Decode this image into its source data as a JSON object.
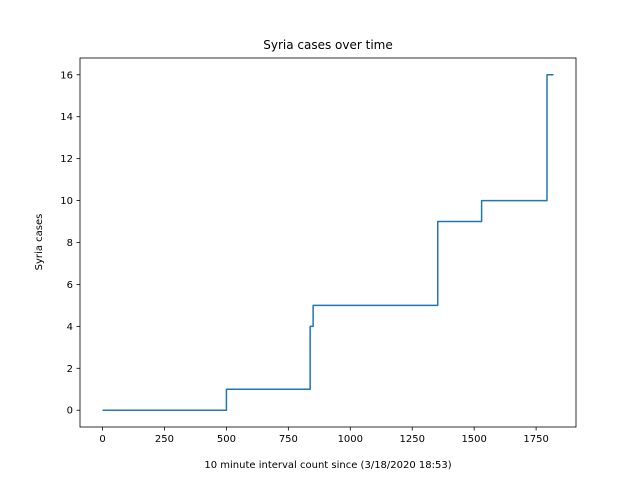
{
  "chart_data": {
    "type": "line",
    "title": "Syria cases over time",
    "xlabel": "10 minute interval count since (3/18/2020 18:53)",
    "ylabel": "Syria cases",
    "xlim": [
      -91,
      1911
    ],
    "ylim": [
      -0.8,
      16.8
    ],
    "xticks": [
      0,
      250,
      500,
      750,
      1000,
      1250,
      1500,
      1750
    ],
    "xtick_labels": [
      "0",
      "250",
      "500",
      "750",
      "1000",
      "1250",
      "1500",
      "1750"
    ],
    "yticks": [
      0,
      2,
      4,
      6,
      8,
      10,
      12,
      14,
      16
    ],
    "ytick_labels": [
      "0",
      "2",
      "4",
      "6",
      "8",
      "10",
      "12",
      "14",
      "16"
    ],
    "grid": false,
    "series": [
      {
        "color": "#1f77b4",
        "step": "post",
        "x": [
          0,
          500,
          838,
          850,
          1353,
          1360,
          1530,
          1794,
          1820
        ],
        "y": [
          0,
          1,
          4,
          5,
          9,
          9,
          10,
          16,
          16
        ]
      }
    ]
  }
}
